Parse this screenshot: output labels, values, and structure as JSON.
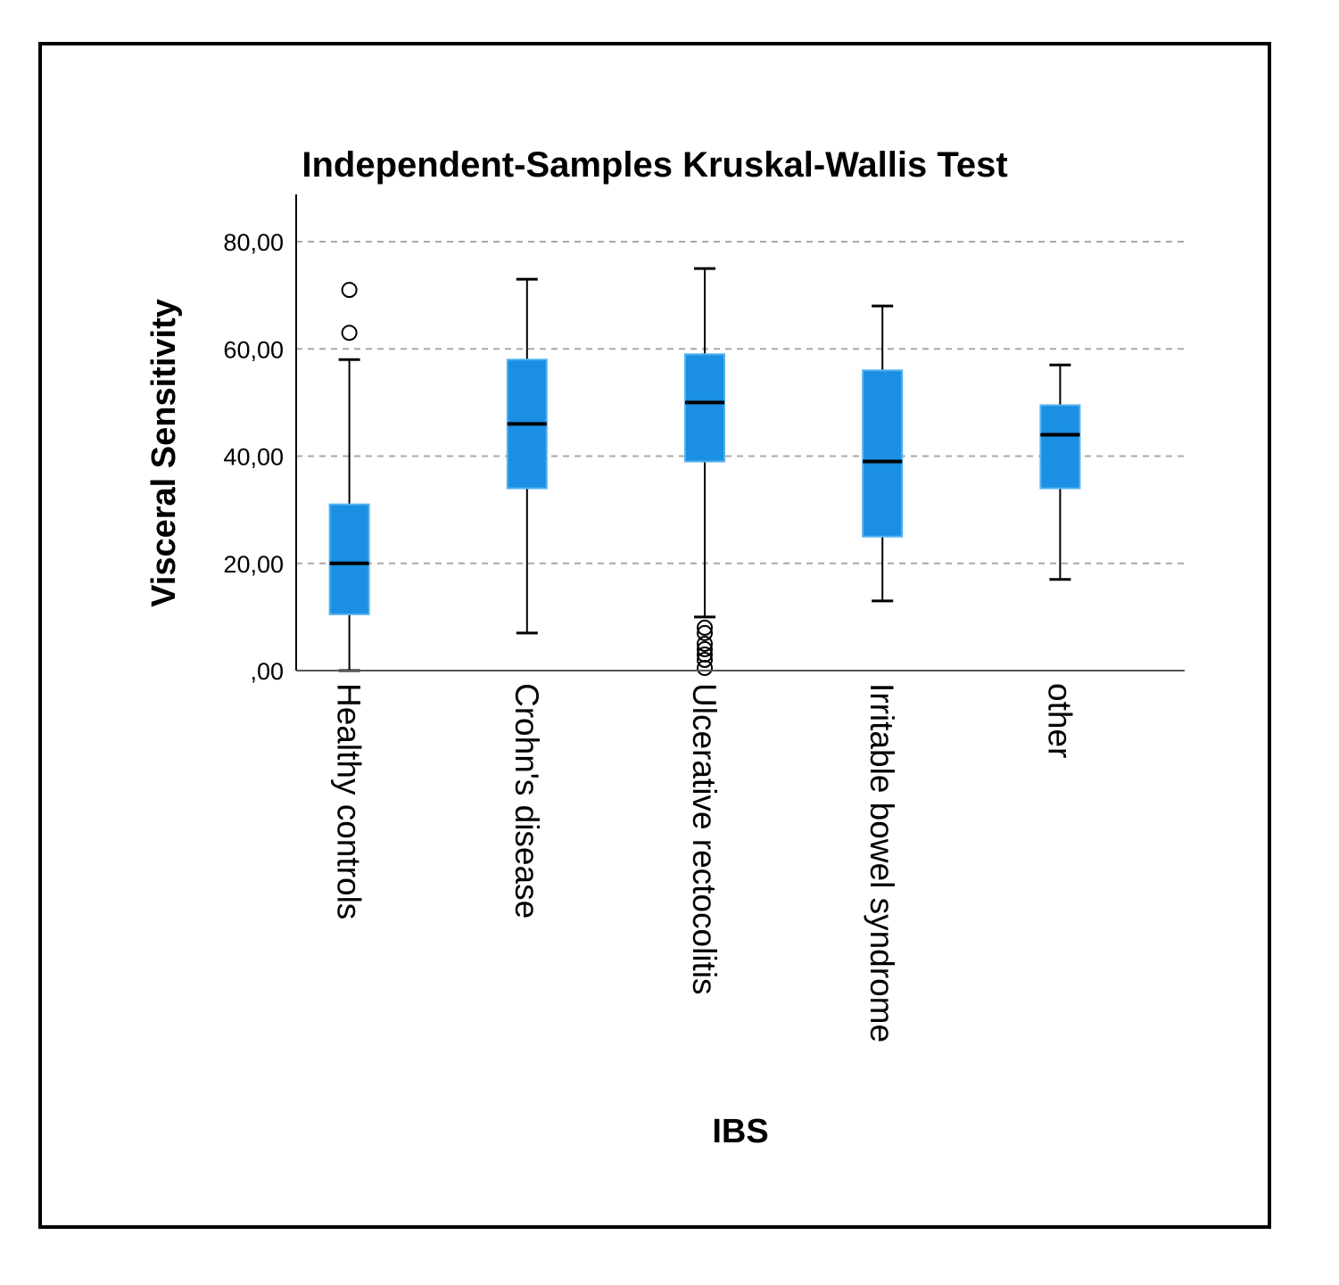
{
  "chart_data": {
    "type": "boxplot",
    "title": "Independent-Samples Kruskal-Wallis Test",
    "xlabel": "IBS",
    "ylabel": "Visceral Sensitivity",
    "ylim": [
      0,
      88
    ],
    "yticks": [
      0,
      20,
      40,
      60,
      80
    ],
    "ytick_labels": [
      ",00",
      "20,00",
      "40,00",
      "60,00",
      "80,00"
    ],
    "grid": "horizontal dashed",
    "box_color": "#1a8fe3",
    "categories": [
      "Healthy controls",
      "Crohn's disease",
      "Ulcerative rectocolitis",
      "Irritable bowel syndrome",
      "other"
    ],
    "boxes": [
      {
        "category": "Healthy controls",
        "whisker_low": 0,
        "q1": 10.5,
        "median": 20,
        "q3": 31,
        "whisker_high": 58,
        "outliers": [
          63,
          71
        ]
      },
      {
        "category": "Crohn's disease",
        "whisker_low": 7,
        "q1": 34,
        "median": 46,
        "q3": 58,
        "whisker_high": 73,
        "outliers": []
      },
      {
        "category": "Ulcerative rectocolitis",
        "whisker_low": 10,
        "q1": 39,
        "median": 50,
        "q3": 59,
        "whisker_high": 75,
        "outliers": [
          0.5,
          2,
          3,
          4,
          5,
          7,
          8
        ]
      },
      {
        "category": "Irritable bowel syndrome",
        "whisker_low": 13,
        "q1": 25,
        "median": 39,
        "q3": 56,
        "whisker_high": 68,
        "outliers": []
      },
      {
        "category": "other",
        "whisker_low": 17,
        "q1": 34,
        "median": 44,
        "q3": 49.5,
        "whisker_high": 57,
        "outliers": []
      }
    ]
  }
}
